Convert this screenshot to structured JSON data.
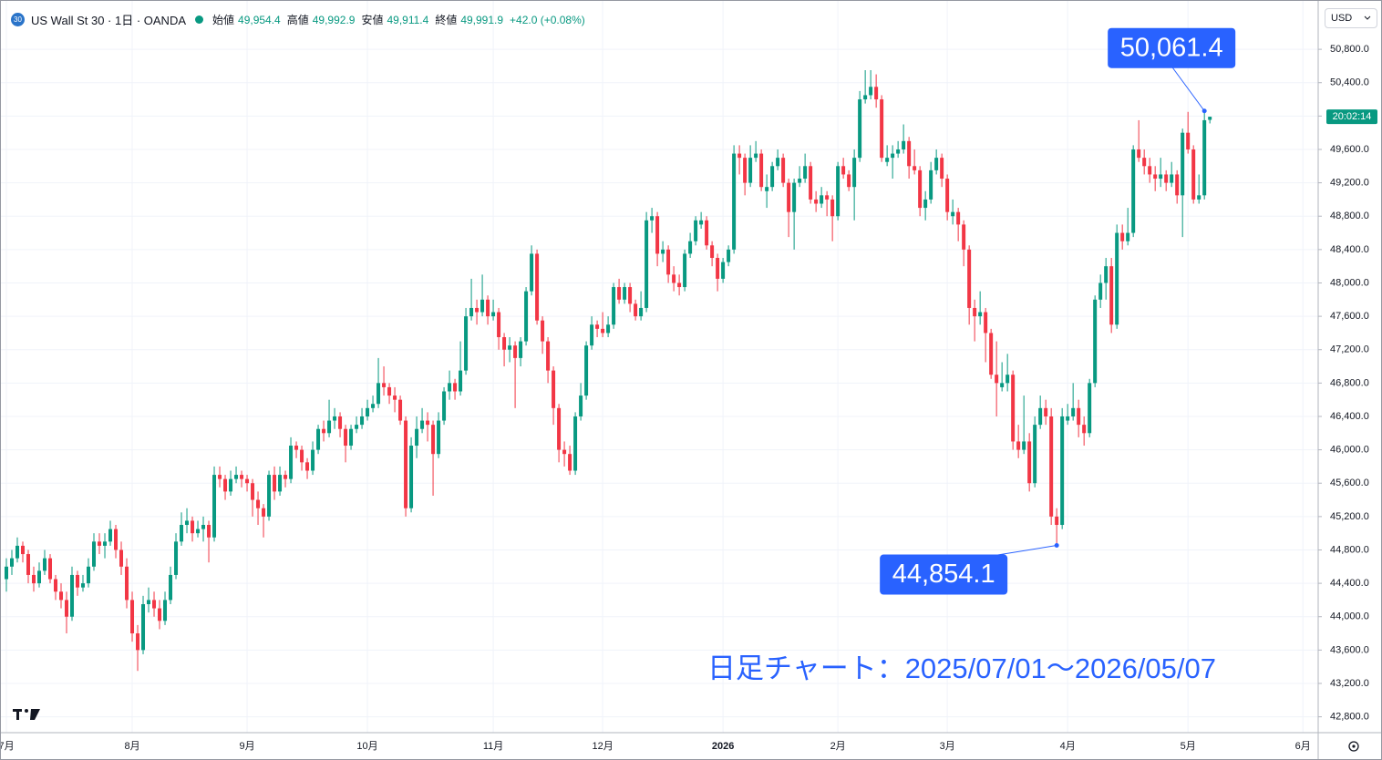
{
  "header": {
    "badge": "30",
    "symbol": "US Wall St 30 · 1日 · OANDA",
    "open_label": "始値",
    "open": "49,954.4",
    "high_label": "高値",
    "high": "49,992.9",
    "low_label": "安値",
    "low": "49,911.4",
    "close_label": "終値",
    "close": "49,991.9",
    "change": "+42.0 (+0.08%)"
  },
  "currency": "USD",
  "chart_data": {
    "type": "candlestick",
    "up_color": "#089981",
    "down_color": "#f23645",
    "ohlc": [
      [
        44450,
        44700,
        44300,
        44600
      ],
      [
        44600,
        44800,
        44500,
        44700
      ],
      [
        44700,
        44950,
        44650,
        44850
      ],
      [
        44850,
        44900,
        44650,
        44750
      ],
      [
        44750,
        44800,
        44400,
        44500
      ],
      [
        44500,
        44600,
        44300,
        44400
      ],
      [
        44400,
        44650,
        44350,
        44550
      ],
      [
        44550,
        44800,
        44500,
        44700
      ],
      [
        44700,
        44750,
        44400,
        44450
      ],
      [
        44450,
        44500,
        44200,
        44300
      ],
      [
        44300,
        44400,
        44100,
        44200
      ],
      [
        44200,
        44300,
        43800,
        44000
      ],
      [
        44000,
        44600,
        43950,
        44500
      ],
      [
        44500,
        44550,
        44250,
        44350
      ],
      [
        44350,
        44500,
        44300,
        44400
      ],
      [
        44400,
        44700,
        44350,
        44600
      ],
      [
        44600,
        45000,
        44550,
        44900
      ],
      [
        44900,
        45000,
        44750,
        44850
      ],
      [
        44850,
        45000,
        44700,
        44900
      ],
      [
        44900,
        45150,
        44850,
        45050
      ],
      [
        45050,
        45100,
        44700,
        44800
      ],
      [
        44800,
        44900,
        44500,
        44600
      ],
      [
        44600,
        44700,
        44100,
        44200
      ],
      [
        44200,
        44300,
        43700,
        43800
      ],
      [
        43800,
        43900,
        43350,
        43600
      ],
      [
        43600,
        44250,
        43550,
        44150
      ],
      [
        44150,
        44350,
        44050,
        44200
      ],
      [
        44200,
        44300,
        44000,
        44100
      ],
      [
        44100,
        44200,
        43850,
        43950
      ],
      [
        43950,
        44300,
        43900,
        44200
      ],
      [
        44200,
        44600,
        44150,
        44500
      ],
      [
        44500,
        45000,
        44450,
        44900
      ],
      [
        44900,
        45250,
        44850,
        45100
      ],
      [
        45100,
        45300,
        45000,
        45150
      ],
      [
        45150,
        45200,
        44900,
        45000
      ],
      [
        45000,
        45150,
        44950,
        45050
      ],
      [
        45050,
        45200,
        44900,
        45100
      ],
      [
        45100,
        45150,
        44650,
        44950
      ],
      [
        44950,
        45800,
        44900,
        45700
      ],
      [
        45700,
        45800,
        45550,
        45650
      ],
      [
        45650,
        45700,
        45400,
        45500
      ],
      [
        45500,
        45750,
        45450,
        45650
      ],
      [
        45650,
        45800,
        45600,
        45700
      ],
      [
        45700,
        45750,
        45550,
        45650
      ],
      [
        45650,
        45700,
        45500,
        45600
      ],
      [
        45600,
        45650,
        45200,
        45400
      ],
      [
        45400,
        45500,
        45100,
        45300
      ],
      [
        45300,
        45350,
        44950,
        45200
      ],
      [
        45200,
        45750,
        45150,
        45700
      ],
      [
        45700,
        45800,
        45400,
        45500
      ],
      [
        45500,
        45800,
        45450,
        45700
      ],
      [
        45700,
        45750,
        45550,
        45650
      ],
      [
        45650,
        46150,
        45600,
        46050
      ],
      [
        46050,
        46100,
        45900,
        46000
      ],
      [
        46000,
        46050,
        45750,
        45850
      ],
      [
        45850,
        45900,
        45650,
        45750
      ],
      [
        45750,
        46100,
        45700,
        46000
      ],
      [
        46000,
        46300,
        45950,
        46250
      ],
      [
        46250,
        46350,
        46100,
        46200
      ],
      [
        46200,
        46600,
        46150,
        46350
      ],
      [
        46350,
        46500,
        46250,
        46400
      ],
      [
        46400,
        46450,
        46150,
        46250
      ],
      [
        46250,
        46300,
        45850,
        46050
      ],
      [
        46050,
        46300,
        46000,
        46250
      ],
      [
        46250,
        46400,
        46200,
        46300
      ],
      [
        46300,
        46500,
        46250,
        46400
      ],
      [
        46400,
        46600,
        46350,
        46500
      ],
      [
        46500,
        46650,
        46450,
        46550
      ],
      [
        46550,
        47100,
        46500,
        46800
      ],
      [
        46800,
        47000,
        46650,
        46750
      ],
      [
        46750,
        46800,
        46550,
        46650
      ],
      [
        46650,
        46750,
        46450,
        46600
      ],
      [
        46600,
        46650,
        46300,
        46350
      ],
      [
        46350,
        46400,
        45200,
        45300
      ],
      [
        45300,
        46150,
        45250,
        46050
      ],
      [
        46050,
        46400,
        45900,
        46250
      ],
      [
        46250,
        46500,
        46200,
        46350
      ],
      [
        46350,
        46450,
        46100,
        46300
      ],
      [
        46300,
        46350,
        45450,
        45950
      ],
      [
        45950,
        46450,
        45900,
        46350
      ],
      [
        46350,
        46750,
        46300,
        46700
      ],
      [
        46700,
        46950,
        46600,
        46800
      ],
      [
        46800,
        46850,
        46600,
        46700
      ],
      [
        46700,
        47300,
        46650,
        46950
      ],
      [
        46950,
        47700,
        46900,
        47600
      ],
      [
        47600,
        48050,
        47550,
        47700
      ],
      [
        47700,
        47800,
        47500,
        47650
      ],
      [
        47650,
        48100,
        47600,
        47800
      ],
      [
        47800,
        47850,
        47500,
        47600
      ],
      [
        47600,
        47800,
        47550,
        47650
      ],
      [
        47650,
        47700,
        47200,
        47350
      ],
      [
        47350,
        47400,
        47000,
        47200
      ],
      [
        47200,
        47350,
        47050,
        47250
      ],
      [
        47250,
        47300,
        46500,
        47100
      ],
      [
        47100,
        47350,
        47000,
        47300
      ],
      [
        47300,
        47950,
        47250,
        47900
      ],
      [
        47900,
        48450,
        47850,
        48350
      ],
      [
        48350,
        48400,
        47500,
        47550
      ],
      [
        47550,
        47600,
        47150,
        47300
      ],
      [
        47300,
        47350,
        46800,
        46950
      ],
      [
        46950,
        47000,
        46300,
        46500
      ],
      [
        46500,
        46550,
        45850,
        46000
      ],
      [
        46000,
        46100,
        45800,
        45950
      ],
      [
        45950,
        46050,
        45700,
        45750
      ],
      [
        45750,
        46450,
        45700,
        46400
      ],
      [
        46400,
        46800,
        46350,
        46650
      ],
      [
        46650,
        47300,
        46600,
        47250
      ],
      [
        47250,
        47600,
        47200,
        47500
      ],
      [
        47500,
        47550,
        47350,
        47450
      ],
      [
        47450,
        47650,
        47350,
        47400
      ],
      [
        47400,
        47600,
        47350,
        47500
      ],
      [
        47500,
        48000,
        47450,
        47950
      ],
      [
        47950,
        48050,
        47750,
        47800
      ],
      [
        47800,
        48000,
        47750,
        47950
      ],
      [
        47950,
        48000,
        47650,
        47750
      ],
      [
        47750,
        47800,
        47550,
        47600
      ],
      [
        47600,
        47900,
        47550,
        47700
      ],
      [
        47700,
        48850,
        47650,
        48750
      ],
      [
        48750,
        48900,
        48600,
        48800
      ],
      [
        48800,
        48850,
        48200,
        48350
      ],
      [
        48350,
        48500,
        48250,
        48400
      ],
      [
        48400,
        48450,
        48000,
        48100
      ],
      [
        48100,
        48200,
        47900,
        48000
      ],
      [
        48000,
        48100,
        47850,
        47950
      ],
      [
        47950,
        48400,
        47900,
        48350
      ],
      [
        48350,
        48600,
        48300,
        48500
      ],
      [
        48500,
        48800,
        48450,
        48750
      ],
      [
        48700,
        48850,
        48650,
        48750
      ],
      [
        48750,
        48800,
        48400,
        48450
      ],
      [
        48450,
        48500,
        48200,
        48300
      ],
      [
        48300,
        48350,
        47900,
        48050
      ],
      [
        48050,
        48300,
        48000,
        48250
      ],
      [
        48250,
        48450,
        48200,
        48400
      ],
      [
        48400,
        49650,
        48350,
        49550
      ],
      [
        49550,
        49650,
        49300,
        49500
      ],
      [
        49500,
        49550,
        49050,
        49200
      ],
      [
        49200,
        49650,
        49150,
        49500
      ],
      [
        49500,
        49700,
        49450,
        49550
      ],
      [
        49550,
        49600,
        49100,
        49150
      ],
      [
        49100,
        49300,
        48900,
        49150
      ],
      [
        49150,
        49450,
        49100,
        49400
      ],
      [
        49400,
        49600,
        49350,
        49500
      ],
      [
        49500,
        49550,
        49150,
        49200
      ],
      [
        49200,
        49250,
        48550,
        48850
      ],
      [
        48850,
        49250,
        48400,
        49200
      ],
      [
        49200,
        49400,
        49150,
        49250
      ],
      [
        49250,
        49550,
        49200,
        49400
      ],
      [
        49400,
        49450,
        48950,
        49000
      ],
      [
        49000,
        49100,
        48850,
        48950
      ],
      [
        48950,
        49150,
        48900,
        49050
      ],
      [
        49050,
        49100,
        48800,
        49000
      ],
      [
        49000,
        49050,
        48500,
        48800
      ],
      [
        48800,
        49450,
        48750,
        49400
      ],
      [
        49400,
        49500,
        49250,
        49300
      ],
      [
        49300,
        49350,
        49100,
        49150
      ],
      [
        49150,
        49600,
        48750,
        49500
      ],
      [
        49500,
        50300,
        49450,
        50200
      ],
      [
        50200,
        50550,
        50150,
        50250
      ],
      [
        50250,
        50550,
        50200,
        50350
      ],
      [
        50350,
        50500,
        50100,
        50200
      ],
      [
        50200,
        50250,
        49450,
        49500
      ],
      [
        49450,
        49650,
        49400,
        49500
      ],
      [
        49500,
        49650,
        49250,
        49550
      ],
      [
        49550,
        49700,
        49500,
        49600
      ],
      [
        49600,
        49900,
        49550,
        49700
      ],
      [
        49700,
        49750,
        49250,
        49400
      ],
      [
        49400,
        49600,
        49300,
        49350
      ],
      [
        49350,
        49400,
        48800,
        48900
      ],
      [
        48900,
        49100,
        48750,
        49000
      ],
      [
        49000,
        49450,
        48950,
        49350
      ],
      [
        49350,
        49600,
        49300,
        49500
      ],
      [
        49500,
        49550,
        49150,
        49250
      ],
      [
        49250,
        49300,
        48750,
        48850
      ],
      [
        48800,
        49000,
        48700,
        48850
      ],
      [
        48850,
        48900,
        48500,
        48700
      ],
      [
        48700,
        48750,
        48200,
        48400
      ],
      [
        48400,
        48450,
        47500,
        47700
      ],
      [
        47700,
        47800,
        47300,
        47600
      ],
      [
        47600,
        47900,
        47500,
        47650
      ],
      [
        47650,
        47700,
        47050,
        47400
      ],
      [
        47400,
        47450,
        46850,
        46900
      ],
      [
        46900,
        47300,
        46400,
        46800
      ],
      [
        46750,
        47050,
        46700,
        46800
      ],
      [
        46800,
        47150,
        46700,
        46900
      ],
      [
        46900,
        46950,
        46000,
        46100
      ],
      [
        46100,
        46300,
        45900,
        46000
      ],
      [
        46000,
        46650,
        45950,
        46100
      ],
      [
        46100,
        46200,
        45500,
        45600
      ],
      [
        45600,
        46400,
        45550,
        46300
      ],
      [
        46300,
        46650,
        46250,
        46500
      ],
      [
        46500,
        46600,
        46300,
        46400
      ],
      [
        46400,
        46500,
        45100,
        45200
      ],
      [
        45200,
        45300,
        44854.1,
        45100
      ],
      [
        45100,
        46500,
        45050,
        46400
      ],
      [
        46350,
        46550,
        46300,
        46400
      ],
      [
        46400,
        46800,
        46350,
        46500
      ],
      [
        46500,
        46600,
        46150,
        46300
      ],
      [
        46300,
        46400,
        46050,
        46200
      ],
      [
        46200,
        46850,
        46150,
        46800
      ],
      [
        46800,
        47850,
        46750,
        47800
      ],
      [
        47800,
        48100,
        47700,
        48000
      ],
      [
        48000,
        48300,
        47800,
        48200
      ],
      [
        48200,
        48300,
        47400,
        47500
      ],
      [
        47500,
        48700,
        47450,
        48600
      ],
      [
        48600,
        48700,
        48400,
        48500
      ],
      [
        48500,
        48900,
        48450,
        48600
      ],
      [
        48600,
        49650,
        48550,
        49600
      ],
      [
        49600,
        49950,
        49450,
        49500
      ],
      [
        49500,
        49600,
        49300,
        49400
      ],
      [
        49400,
        49500,
        49200,
        49300
      ],
      [
        49300,
        49400,
        49100,
        49250
      ],
      [
        49250,
        49500,
        49150,
        49300
      ],
      [
        49300,
        49350,
        49100,
        49200
      ],
      [
        49200,
        49450,
        49150,
        49300
      ],
      [
        49300,
        49350,
        48950,
        49050
      ],
      [
        49050,
        49850,
        48550,
        49800
      ],
      [
        49800,
        50050,
        49550,
        49600
      ],
      [
        49600,
        49650,
        48950,
        49000
      ],
      [
        49000,
        49300,
        48950,
        49050
      ],
      [
        49050,
        50061.4,
        49000,
        49950
      ],
      [
        49954.4,
        49992.9,
        49911.4,
        49991.9
      ]
    ],
    "xlim": [
      -1,
      239.8
    ],
    "xticks": [
      {
        "value": 0,
        "label": "7月"
      },
      {
        "value": 23,
        "label": "8月"
      },
      {
        "value": 44,
        "label": "9月"
      },
      {
        "value": 66,
        "label": "10月"
      },
      {
        "value": 89,
        "label": "11月"
      },
      {
        "value": 109,
        "label": "12月"
      },
      {
        "value": 131,
        "label": "2026"
      },
      {
        "value": 152,
        "label": "2月"
      },
      {
        "value": 172,
        "label": "3月"
      },
      {
        "value": 194,
        "label": "4月"
      },
      {
        "value": 216,
        "label": "5月"
      },
      {
        "value": 237,
        "label": "6月"
      }
    ],
    "ylim": [
      42610,
      51380
    ],
    "yticks": [
      {
        "value": 42800,
        "label": "42,800.0"
      },
      {
        "value": 43200,
        "label": "43,200.0"
      },
      {
        "value": 43600,
        "label": "43,600.0"
      },
      {
        "value": 44000,
        "label": "44,000.0"
      },
      {
        "value": 44400,
        "label": "44,400.0"
      },
      {
        "value": 44800,
        "label": "44,800.0"
      },
      {
        "value": 45200,
        "label": "45,200.0"
      },
      {
        "value": 45600,
        "label": "45,600.0"
      },
      {
        "value": 46000,
        "label": "46,000.0"
      },
      {
        "value": 46400,
        "label": "46,400.0"
      },
      {
        "value": 46800,
        "label": "46,800.0"
      },
      {
        "value": 47200,
        "label": "47,200.0"
      },
      {
        "value": 47600,
        "label": "47,600.0"
      },
      {
        "value": 48000,
        "label": "48,000.0"
      },
      {
        "value": 48400,
        "label": "48,400.0"
      },
      {
        "value": 48800,
        "label": "48,800.0"
      },
      {
        "value": 49200,
        "label": "49,200.0"
      },
      {
        "value": 49600,
        "label": "49,600.0"
      },
      {
        "value": 50000,
        "label": "50,000.0"
      },
      {
        "value": 50400,
        "label": "50,400.0"
      },
      {
        "value": 50800,
        "label": "50,800.0"
      }
    ],
    "grid": true,
    "countdown": "20:02:14",
    "annotation_color": "#2962ff",
    "annotations": [
      {
        "value": 50061.4,
        "label": "50,061.4"
      },
      {
        "value": 44854.1,
        "label": "44,854.1"
      }
    ],
    "note": "日足チャート：2025/07/01～2026/05/07"
  }
}
